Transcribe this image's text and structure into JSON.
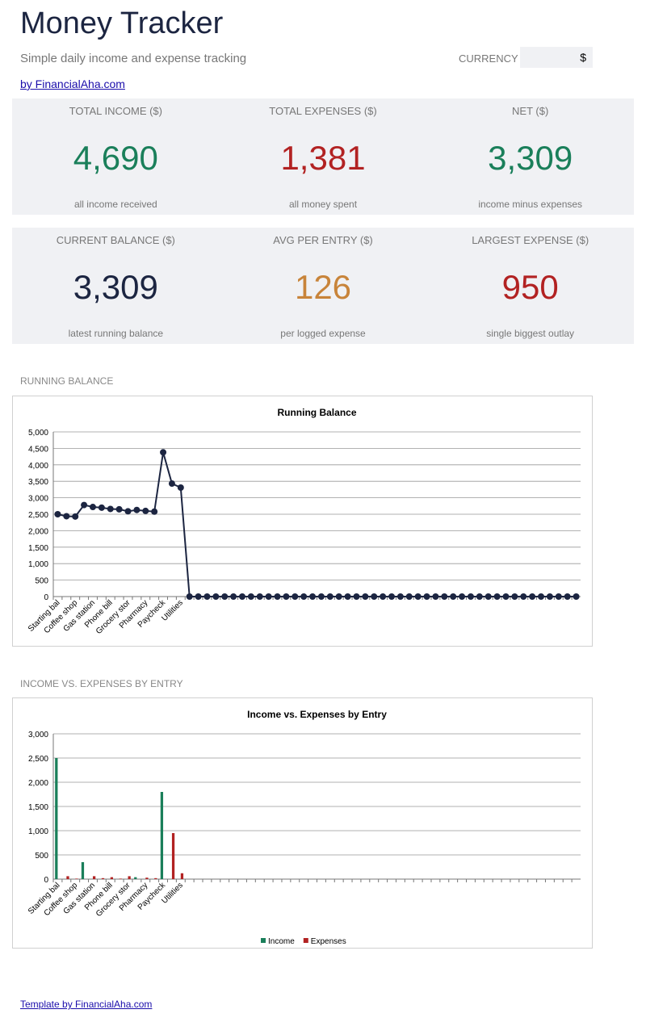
{
  "header": {
    "title": "Money Tracker",
    "subtitle": "Simple daily income and expense tracking",
    "link": "by FinancialAha.com",
    "currency_label": "CURRENCY",
    "currency_value": "$"
  },
  "cards": [
    {
      "label": "TOTAL INCOME ($)",
      "value": "4,690",
      "note": "all income received",
      "color": "#1a7f5a"
    },
    {
      "label": "TOTAL EXPENSES ($)",
      "value": "1,381",
      "note": "all money spent",
      "color": "#b22222"
    },
    {
      "label": "NET ($)",
      "value": "3,309",
      "note": "income minus expenses",
      "color": "#1a7f5a"
    },
    {
      "label": "CURRENT BALANCE ($)",
      "value": "3,309",
      "note": "latest running balance",
      "color": "#1c2541"
    },
    {
      "label": "AVG PER ENTRY ($)",
      "value": "126",
      "note": "per logged expense",
      "color": "#c8843a"
    },
    {
      "label": "LARGEST EXPENSE ($)",
      "value": "950",
      "note": "single biggest outlay",
      "color": "#b22222"
    }
  ],
  "sections": [
    "RUNNING BALANCE",
    "INCOME VS. EXPENSES BY ENTRY"
  ],
  "footer": "Template by FinancialAha.com",
  "chart_data": [
    {
      "type": "line",
      "title": "Running Balance",
      "categories": [
        "Starting bal",
        null,
        "Coffee shop",
        null,
        "Gas station",
        null,
        "Phone bill",
        null,
        "Grocery stor",
        null,
        "Pharmacy",
        null,
        "Paycheck",
        null,
        "Utilities",
        null,
        null,
        null,
        null,
        null,
        null,
        null,
        null,
        null,
        null,
        null,
        null,
        null,
        null,
        null,
        null,
        null,
        null,
        null,
        null,
        null,
        null,
        null,
        null,
        null,
        null,
        null,
        null,
        null,
        null,
        null,
        null,
        null,
        null,
        null,
        null,
        null,
        null,
        null,
        null,
        null,
        null,
        null,
        null,
        null
      ],
      "series": [
        {
          "name": "Running Balance",
          "color": "#1c2541",
          "values": [
            2500,
            2440,
            2430,
            2780,
            2720,
            2700,
            2660,
            2650,
            2590,
            2630,
            2600,
            2580,
            4380,
            3430,
            3309,
            0,
            0,
            0,
            0,
            0,
            0,
            0,
            0,
            0,
            0,
            0,
            0,
            0,
            0,
            0,
            0,
            0,
            0,
            0,
            0,
            0,
            0,
            0,
            0,
            0,
            0,
            0,
            0,
            0,
            0,
            0,
            0,
            0,
            0,
            0,
            0,
            0,
            0,
            0,
            0,
            0,
            0,
            0,
            0,
            0
          ]
        }
      ],
      "ylim": [
        0,
        5000
      ],
      "yticks": [
        0,
        500,
        {
          "value": 1000,
          "label": "1,000"
        },
        {
          "value": 1500,
          "label": "1,500"
        },
        {
          "value": 2000,
          "label": "2,000"
        },
        {
          "value": 2500,
          "label": "2,500"
        },
        {
          "value": 3000,
          "label": "3,000"
        },
        {
          "value": 3500,
          "label": "3,500"
        },
        {
          "value": 4000,
          "label": "4,000"
        },
        {
          "value": 4500,
          "label": "4,500"
        },
        {
          "value": 5000,
          "label": "5,000"
        }
      ],
      "grid": true
    },
    {
      "type": "bar",
      "title": "Income vs. Expenses by Entry",
      "categories": [
        "Starting bal",
        null,
        "Coffee shop",
        null,
        "Gas station",
        null,
        "Phone bill",
        null,
        "Grocery stor",
        null,
        "Pharmacy",
        null,
        "Paycheck",
        null,
        "Utilities",
        null,
        null,
        null,
        null,
        null,
        null,
        null,
        null,
        null,
        null,
        null,
        null,
        null,
        null,
        null,
        null,
        null,
        null,
        null,
        null,
        null,
        null,
        null,
        null,
        null,
        null,
        null,
        null,
        null,
        null,
        null,
        null,
        null,
        null,
        null,
        null,
        null,
        null,
        null,
        null,
        null,
        null,
        null,
        null,
        null
      ],
      "series": [
        {
          "name": "Income",
          "color": "#1a7f5a",
          "values": [
            2500,
            0,
            0,
            350,
            0,
            0,
            0,
            0,
            0,
            40,
            0,
            0,
            1800,
            0,
            0,
            0,
            0,
            0,
            0,
            0,
            0,
            0,
            0,
            0,
            0,
            0,
            0,
            0,
            0,
            0,
            0,
            0,
            0,
            0,
            0,
            0,
            0,
            0,
            0,
            0,
            0,
            0,
            0,
            0,
            0,
            0,
            0,
            0,
            0,
            0,
            0,
            0,
            0,
            0,
            0,
            0,
            0,
            0,
            0,
            0
          ]
        },
        {
          "name": "Expenses",
          "color": "#b22222",
          "values": [
            0,
            60,
            10,
            0,
            60,
            20,
            40,
            10,
            60,
            0,
            30,
            20,
            0,
            950,
            121,
            0,
            0,
            0,
            0,
            0,
            0,
            0,
            0,
            0,
            0,
            0,
            0,
            0,
            0,
            0,
            0,
            0,
            0,
            0,
            0,
            0,
            0,
            0,
            0,
            0,
            0,
            0,
            0,
            0,
            0,
            0,
            0,
            0,
            0,
            0,
            0,
            0,
            0,
            0,
            0,
            0,
            0,
            0,
            0,
            0
          ]
        }
      ],
      "ylim": [
        0,
        3000
      ],
      "yticks": [
        0,
        500,
        {
          "value": 1000,
          "label": "1,000"
        },
        {
          "value": 1500,
          "label": "1,500"
        },
        {
          "value": 2000,
          "label": "2,000"
        },
        {
          "value": 2500,
          "label": "2,500"
        },
        {
          "value": 3000,
          "label": "3,000"
        }
      ],
      "grid": true,
      "legend": "bottom"
    }
  ]
}
